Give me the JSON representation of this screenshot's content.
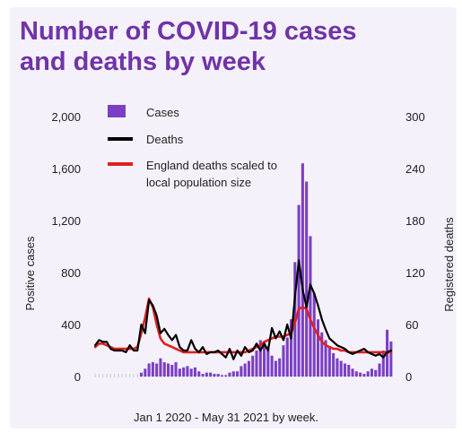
{
  "title_lines": [
    "Number of COVID-19 cases",
    "and deaths by week"
  ],
  "footer": "Jan 1 2020 - May 31 2021 by week.",
  "colors": {
    "title": "#7034a8",
    "bars": "#7b3fc4",
    "deaths_line": "#000000",
    "england_line": "#e02020",
    "background": "#f5f1fa"
  },
  "chart_data": {
    "type": "bar",
    "title": "Number of COVID-19 cases and deaths by week",
    "xlabel": "Jan 1 2020 - May 31 2021 by week.",
    "y_left": {
      "label": "Positive cases",
      "ticks": [
        "0",
        "400",
        "800",
        "1,200",
        "1,600",
        "2,000"
      ],
      "tick_values": [
        0,
        400,
        800,
        1200,
        1600,
        2000
      ],
      "lim": [
        0,
        2000
      ]
    },
    "y_right": {
      "label": "Registered deaths",
      "ticks": [
        "0",
        "60",
        "120",
        "180",
        "240",
        "300"
      ],
      "tick_values": [
        0,
        60,
        120,
        180,
        240,
        300
      ],
      "lim": [
        0,
        300
      ]
    },
    "legend": [
      "Cases",
      "Deaths",
      "England deaths scaled to local population size"
    ],
    "legend_placement": "top-left",
    "series": [
      {
        "name": "Cases",
        "type": "bar",
        "axis": "left",
        "values": [
          0,
          0,
          0,
          0,
          0,
          0,
          0,
          0,
          0,
          0,
          0,
          0,
          30,
          60,
          100,
          110,
          100,
          140,
          110,
          100,
          90,
          110,
          60,
          70,
          80,
          60,
          70,
          40,
          20,
          30,
          30,
          20,
          20,
          10,
          10,
          30,
          40,
          40,
          80,
          100,
          120,
          160,
          200,
          280,
          260,
          230,
          160,
          120,
          140,
          240,
          300,
          440,
          880,
          1320,
          1640,
          1500,
          1080,
          640,
          440,
          340,
          280,
          220,
          180,
          140,
          120,
          100,
          90,
          60,
          40,
          30,
          20,
          40,
          60,
          50,
          100,
          200,
          360,
          270
        ]
      },
      {
        "name": "Deaths",
        "type": "line",
        "axis": "right",
        "values": [
          36,
          42,
          40,
          40,
          32,
          30,
          30,
          30,
          28,
          36,
          30,
          30,
          60,
          50,
          88,
          82,
          70,
          50,
          55,
          48,
          42,
          48,
          34,
          30,
          30,
          42,
          32,
          28,
          34,
          26,
          28,
          28,
          30,
          26,
          22,
          32,
          20,
          30,
          24,
          34,
          28,
          30,
          38,
          30,
          38,
          30,
          56,
          44,
          52,
          42,
          60,
          44,
          92,
          134,
          100,
          80,
          106,
          96,
          82,
          66,
          54,
          44,
          40,
          36,
          34,
          32,
          28,
          26,
          28,
          30,
          32,
          28,
          26,
          24,
          26,
          22,
          28,
          30
        ]
      },
      {
        "name": "England deaths scaled to local population size",
        "type": "line",
        "axis": "right",
        "values": [
          34,
          38,
          38,
          36,
          34,
          32,
          32,
          32,
          32,
          32,
          32,
          34,
          50,
          68,
          90,
          80,
          60,
          44,
          38,
          36,
          34,
          32,
          30,
          28,
          28,
          28,
          28,
          28,
          28,
          28,
          28,
          28,
          28,
          28,
          28,
          28,
          28,
          28,
          28,
          28,
          30,
          32,
          34,
          36,
          40,
          42,
          44,
          46,
          46,
          46,
          48,
          50,
          62,
          78,
          80,
          78,
          66,
          56,
          48,
          40,
          36,
          34,
          32,
          32,
          30,
          30,
          28,
          28,
          28,
          28,
          28,
          28,
          28,
          28,
          28,
          28,
          28,
          28
        ]
      }
    ]
  }
}
